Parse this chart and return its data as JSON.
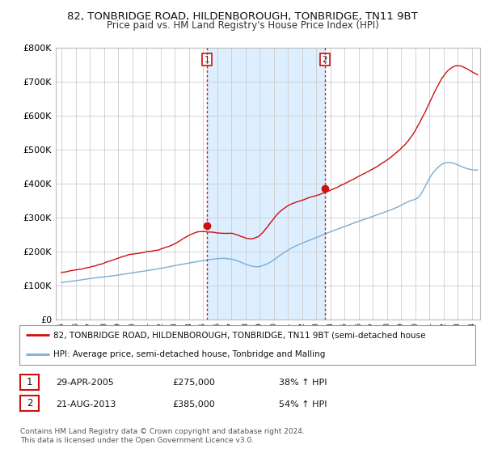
{
  "title_line1": "82, TONBRIDGE ROAD, HILDENBOROUGH, TONBRIDGE, TN11 9BT",
  "title_line2": "Price paid vs. HM Land Registry's House Price Index (HPI)",
  "legend_line1": "82, TONBRIDGE ROAD, HILDENBOROUGH, TONBRIDGE, TN11 9BT (semi-detached house",
  "legend_line2": "HPI: Average price, semi-detached house, Tonbridge and Malling",
  "sale1_date": "29-APR-2005",
  "sale1_price": "£275,000",
  "sale1_hpi": "38% ↑ HPI",
  "sale2_date": "21-AUG-2013",
  "sale2_price": "£385,000",
  "sale2_hpi": "54% ↑ HPI",
  "footer": "Contains HM Land Registry data © Crown copyright and database right 2024.\nThis data is licensed under the Open Government Licence v3.0.",
  "hpi_color": "#7aadd4",
  "price_color": "#cc1111",
  "shade_color": "#ddeeff",
  "bg_color": "#ffffff",
  "grid_color": "#cccccc",
  "ylim_max": 800000,
  "ylim_min": 0,
  "sale1_year": 2005.29,
  "sale2_year": 2013.62,
  "sale1_value": 275000,
  "sale2_value": 385000
}
